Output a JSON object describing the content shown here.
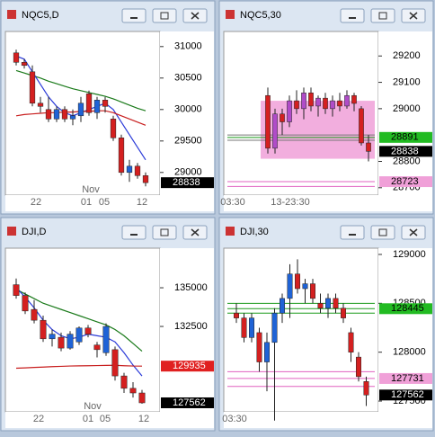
{
  "windows": [
    {
      "title": "NQC5,D",
      "type": "candlestick",
      "ylim": [
        28640,
        31240
      ],
      "yticks": [
        31000,
        30500,
        30000,
        29500,
        29000
      ],
      "up_color": "#1f63d6",
      "down_color": "#d42020",
      "candles": [
        [
          30900,
          30950,
          30700,
          30750
        ],
        [
          30750,
          30800,
          30650,
          30700
        ],
        [
          30600,
          30700,
          30050,
          30100
        ],
        [
          30100,
          30200,
          29950,
          30050
        ],
        [
          30000,
          30200,
          29800,
          29850
        ],
        [
          29850,
          30050,
          29800,
          30000
        ],
        [
          30000,
          30050,
          29800,
          29850
        ],
        [
          29850,
          30000,
          29750,
          29900
        ],
        [
          29900,
          30200,
          29800,
          30100
        ],
        [
          30250,
          30300,
          29900,
          29950
        ],
        [
          29950,
          30200,
          29850,
          30150
        ],
        [
          30150,
          30200,
          29950,
          30050
        ],
        [
          29850,
          29900,
          29500,
          29550
        ],
        [
          29550,
          29600,
          28950,
          29000
        ],
        [
          29000,
          29200,
          28850,
          29100
        ],
        [
          29100,
          29150,
          28900,
          28950
        ],
        [
          28950,
          29000,
          28780,
          28838
        ]
      ],
      "lines": [
        {
          "color": "#1a7a1a",
          "values": [
            30620,
            30580,
            30540,
            30500,
            30450,
            30410,
            30370,
            30330,
            30300,
            30270,
            30240,
            30210,
            30170,
            30120,
            30070,
            30020,
            29980
          ]
        },
        {
          "color": "#2a3ad8",
          "values": [
            30850,
            30800,
            30600,
            30400,
            30200,
            30050,
            29950,
            29900,
            29950,
            30000,
            30050,
            30100,
            30000,
            29800,
            29600,
            29400,
            29200
          ]
        },
        {
          "color": "#c81e1e",
          "values": [
            29900,
            29920,
            29930,
            29940,
            29950,
            29950,
            29960,
            29960,
            29970,
            29970,
            29980,
            29980,
            29950,
            29900,
            29850,
            29800,
            29750
          ]
        }
      ],
      "levels": [],
      "tags": [
        {
          "value": 28838,
          "bg": "#000000",
          "fg": "#ffffff"
        }
      ],
      "xlabels": [
        "22",
        "Nov",
        "01",
        "05",
        "12"
      ]
    },
    {
      "title": "NQC5,30",
      "type": "candlestick",
      "ylim": [
        28672,
        29293
      ],
      "yticks": [
        29200,
        29100,
        29000,
        28800,
        28700
      ],
      "up_color": "#b04cc8",
      "down_color": "#d42020",
      "zone": [
        28810,
        29030
      ],
      "candles": [
        [
          29050,
          29080,
          28830,
          28850
        ],
        [
          28850,
          29000,
          28830,
          28980
        ],
        [
          28980,
          29000,
          28900,
          28950
        ],
        [
          28950,
          29050,
          28930,
          29030
        ],
        [
          29030,
          29070,
          28980,
          29000
        ],
        [
          29000,
          29080,
          28960,
          29060
        ],
        [
          29060,
          29080,
          28990,
          29010
        ],
        [
          29010,
          29050,
          28970,
          29040
        ],
        [
          29040,
          29060,
          28980,
          29000
        ],
        [
          29000,
          29050,
          28970,
          29030
        ],
        [
          29030,
          29060,
          28990,
          29010
        ],
        [
          29010,
          29070,
          29000,
          29050
        ],
        [
          29050,
          29060,
          28990,
          29020
        ],
        [
          29000,
          29010,
          28860,
          28870
        ],
        [
          28870,
          28900,
          28800,
          28838
        ]
      ],
      "lines": [],
      "levels": [
        {
          "value": 28891,
          "color": "#1a9a1a"
        },
        {
          "value": 28900,
          "color": "#777777"
        },
        {
          "value": 28880,
          "color": "#777777"
        },
        {
          "value": 28723,
          "color": "#e060c0"
        },
        {
          "value": 28705,
          "color": "#e060c0"
        }
      ],
      "tags": [
        {
          "value": 28891,
          "bg": "#22bb22",
          "fg": "#000000"
        },
        {
          "value": 28838,
          "bg": "#000000",
          "fg": "#ffffff"
        },
        {
          "value": 28723,
          "bg": "#f0a0d8",
          "fg": "#000000"
        }
      ],
      "xlabels": [
        "03:30",
        "13-23:30"
      ]
    },
    {
      "title": "DJI,D",
      "type": "candlestick",
      "ylim": [
        126980,
        137560
      ],
      "yticks": [
        135000,
        132500
      ],
      "up_color": "#1f63d6",
      "down_color": "#d42020",
      "candles": [
        [
          135200,
          135600,
          134300,
          134500
        ],
        [
          134500,
          134700,
          133300,
          133500
        ],
        [
          133600,
          134200,
          132700,
          132900
        ],
        [
          132900,
          133200,
          131500,
          131700
        ],
        [
          131700,
          132300,
          131200,
          132000
        ],
        [
          131800,
          132100,
          130900,
          131100
        ],
        [
          131100,
          132200,
          131000,
          132000
        ],
        [
          131500,
          132500,
          131300,
          132400
        ],
        [
          132400,
          132600,
          131800,
          132000
        ],
        [
          131300,
          131500,
          130500,
          131000
        ],
        [
          130800,
          132700,
          130600,
          132500
        ],
        [
          131000,
          131200,
          129000,
          129300
        ],
        [
          129300,
          129500,
          128200,
          128500
        ],
        [
          128500,
          128900,
          127900,
          128200
        ],
        [
          128200,
          128400,
          127500,
          127562
        ]
      ],
      "lines": [
        {
          "color": "#1a7a1a",
          "values": [
            134900,
            134600,
            134300,
            134000,
            133800,
            133600,
            133400,
            133200,
            133000,
            132800,
            132600,
            132300,
            131900,
            131400,
            130900
          ]
        },
        {
          "color": "#2a3ad8",
          "values": [
            135000,
            134400,
            133700,
            132900,
            132300,
            131900,
            131700,
            131800,
            132000,
            131900,
            131800,
            131500,
            130800,
            130000,
            129300
          ]
        },
        {
          "color": "#c81e1e",
          "values": [
            129800,
            129820,
            129850,
            129870,
            129900,
            129920,
            129940,
            129950,
            129960,
            129970,
            129980,
            129990,
            129960,
            129940,
            129935
          ]
        }
      ],
      "levels": [],
      "tags": [
        {
          "value": 129935,
          "bg": "#e02020",
          "fg": "#ffffff"
        },
        {
          "value": 127562,
          "bg": "#000000",
          "fg": "#ffffff"
        }
      ],
      "xlabels": [
        "22",
        "Nov",
        "01",
        "05",
        "12"
      ]
    },
    {
      "title": "DJI,30",
      "type": "candlestick",
      "ylim": [
        127390,
        129064
      ],
      "yticks": [
        129000,
        128500,
        128000,
        127500
      ],
      "up_color": "#1f63d6",
      "down_color": "#d42020",
      "candles": [
        [
          128400,
          128500,
          128300,
          128350
        ],
        [
          128350,
          128400,
          128100,
          128150
        ],
        [
          128150,
          128400,
          128100,
          128350
        ],
        [
          128200,
          128250,
          127800,
          127900
        ],
        [
          127900,
          128200,
          127600,
          128100
        ],
        [
          128100,
          128450,
          127300,
          128400
        ],
        [
          128400,
          128600,
          128300,
          128550
        ],
        [
          128550,
          128900,
          128350,
          128800
        ],
        [
          128800,
          128950,
          128600,
          128650
        ],
        [
          128650,
          128750,
          128500,
          128700
        ],
        [
          128700,
          128750,
          128500,
          128550
        ],
        [
          128500,
          128600,
          128400,
          128450
        ],
        [
          128450,
          128600,
          128350,
          128550
        ],
        [
          128550,
          128600,
          128400,
          128450
        ],
        [
          128450,
          128500,
          128300,
          128350
        ],
        [
          128200,
          128250,
          127900,
          128000
        ],
        [
          127950,
          128000,
          127700,
          127750
        ],
        [
          127700,
          127750,
          127450,
          127562
        ]
      ],
      "lines": [],
      "levels": [
        {
          "value": 128500,
          "color": "#1a9a1a"
        },
        {
          "value": 128445,
          "color": "#1a9a1a"
        },
        {
          "value": 128400,
          "color": "#1a9a1a"
        },
        {
          "value": 127800,
          "color": "#e060c0"
        },
        {
          "value": 127731,
          "color": "#e060c0"
        },
        {
          "value": 127650,
          "color": "#e060c0"
        }
      ],
      "tags": [
        {
          "value": 128445,
          "bg": "#22bb22",
          "fg": "#000000"
        },
        {
          "value": 127731,
          "bg": "#f0a0d8",
          "fg": "#000000"
        },
        {
          "value": 127562,
          "bg": "#000000",
          "fg": "#ffffff"
        }
      ],
      "xlabels": [
        "03:30"
      ]
    }
  ]
}
